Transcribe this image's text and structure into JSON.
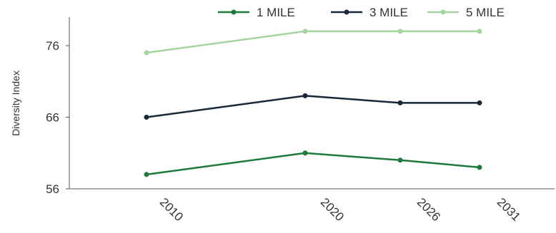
{
  "chart_data": {
    "type": "line",
    "title": "",
    "xlabel": "",
    "ylabel": "Diversity Index",
    "x": [
      "2010",
      "2020",
      "2026",
      "2031"
    ],
    "y_ticks": [
      56,
      66,
      76
    ],
    "ylim": [
      56,
      80
    ],
    "grid": false,
    "legend_position": "top-right",
    "series": [
      {
        "name": "1 MILE",
        "color": "#1e7a3c",
        "values": [
          58,
          61,
          60,
          59
        ]
      },
      {
        "name": "3 MILE",
        "color": "#16283a",
        "values": [
          66,
          69,
          68,
          68
        ]
      },
      {
        "name": "5 MILE",
        "color": "#a6d4a0",
        "values": [
          75,
          78,
          78,
          78
        ]
      }
    ]
  }
}
